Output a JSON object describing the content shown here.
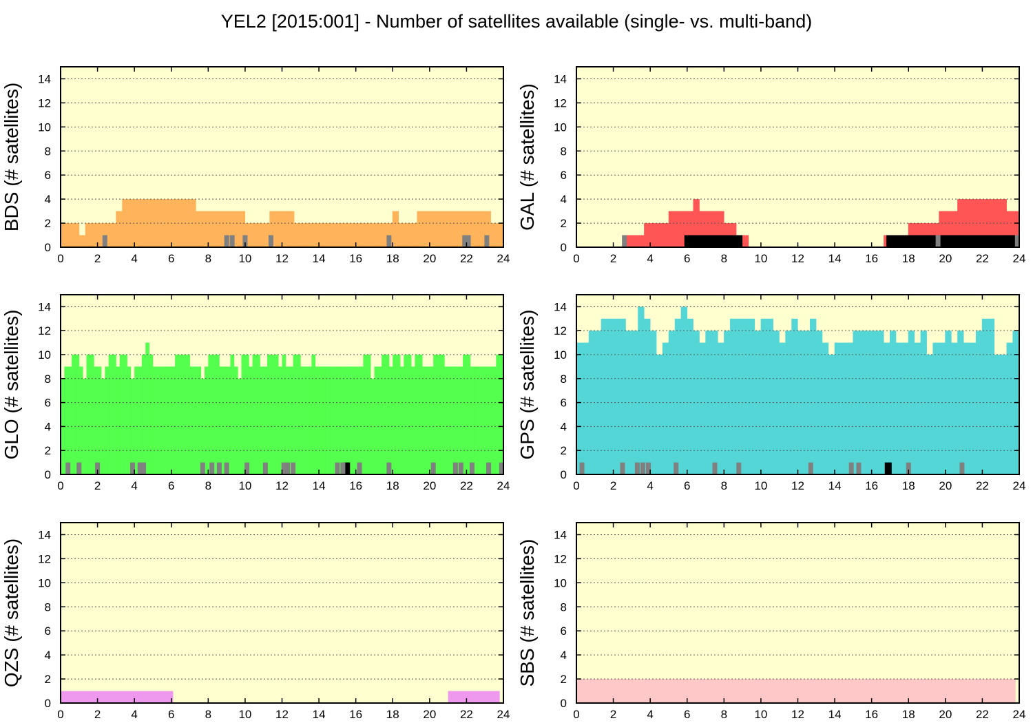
{
  "title": "YEL2 [2015:001] - Number of satellites available (single- vs. multi-band)",
  "colors": {
    "plot_bg": "#ffffd0",
    "multi_band": "#000000",
    "single_band_marks": "#808080",
    "grid": "#555555"
  },
  "chart_data": [
    {
      "type": "bar",
      "system": "BDS",
      "ylabel": "BDS (# satellites)",
      "color": "#ffb35a",
      "xlim": [
        0,
        24
      ],
      "ylim": [
        0,
        15
      ],
      "xticks": [
        0,
        2,
        4,
        6,
        8,
        10,
        12,
        14,
        16,
        18,
        20,
        22,
        24
      ],
      "yticks": [
        0,
        2,
        4,
        6,
        8,
        10,
        12,
        14
      ],
      "grid": true,
      "bin_hours": 0.333,
      "values": [
        2,
        2,
        2,
        1,
        2,
        2,
        2,
        2,
        2,
        3,
        4,
        4,
        4,
        4,
        4,
        4,
        4,
        4,
        4,
        4,
        4,
        4,
        3,
        3,
        3,
        3,
        3,
        3,
        3,
        3,
        2,
        2,
        2,
        2,
        3,
        3,
        3,
        3,
        2,
        2,
        2,
        2,
        2,
        2,
        2,
        2,
        2,
        2,
        2,
        2,
        2,
        2,
        2,
        2,
        3,
        2,
        2,
        2,
        3,
        3,
        3,
        3,
        3,
        3,
        3,
        3,
        3,
        3,
        3,
        3,
        2,
        2
      ],
      "single_band": [],
      "grey_marks_x": [
        2.4,
        9.0,
        9.3,
        10.0,
        11.4,
        17.8,
        21.9,
        22.1,
        23.1
      ]
    },
    {
      "type": "bar",
      "system": "GAL",
      "ylabel": "GAL (# satellites)",
      "color": "#ff5555",
      "xlim": [
        0,
        24
      ],
      "ylim": [
        0,
        15
      ],
      "xticks": [
        0,
        2,
        4,
        6,
        8,
        10,
        12,
        14,
        16,
        18,
        20,
        22,
        24
      ],
      "yticks": [
        0,
        2,
        4,
        6,
        8,
        10,
        12,
        14
      ],
      "grid": true,
      "bin_hours": 0.333,
      "values": [
        0,
        0,
        0,
        0,
        0,
        0,
        0,
        0,
        1,
        1,
        1,
        2,
        2,
        2,
        2,
        3,
        3,
        3,
        3,
        4,
        3,
        3,
        3,
        3,
        2,
        2,
        1,
        1,
        0,
        0,
        0,
        0,
        0,
        0,
        0,
        0,
        0,
        0,
        0,
        0,
        0,
        0,
        0,
        0,
        0,
        0,
        0,
        0,
        0,
        0,
        1,
        1,
        1,
        1,
        2,
        2,
        2,
        2,
        2,
        3,
        3,
        3,
        4,
        4,
        4,
        4,
        4,
        4,
        4,
        4,
        3,
        3
      ],
      "single_band": [
        0,
        0,
        0,
        0,
        0,
        0,
        0,
        0,
        0,
        0,
        0,
        0,
        0,
        0,
        0,
        0,
        0,
        0,
        0,
        0,
        0,
        0,
        0,
        0,
        0,
        0,
        0,
        0,
        0,
        0,
        0,
        0,
        0,
        0,
        0,
        0,
        0,
        0,
        0,
        0,
        0,
        0,
        0,
        0,
        0,
        0,
        0,
        0,
        0,
        0,
        0,
        0,
        0,
        0,
        0,
        0,
        0,
        0,
        0,
        0,
        0,
        0,
        0,
        0,
        0,
        0,
        0,
        0,
        0,
        0,
        0,
        0
      ],
      "multi_band_blocks": [
        [
          5.85,
          9.0
        ],
        [
          16.8,
          23.8
        ]
      ],
      "grey_marks_x": [
        2.6,
        19.6,
        23.9
      ]
    },
    {
      "type": "bar",
      "system": "GLO",
      "ylabel": "GLO (# satellites)",
      "color": "#55ff4d",
      "xlim": [
        0,
        24
      ],
      "ylim": [
        0,
        15
      ],
      "xticks": [
        0,
        2,
        4,
        6,
        8,
        10,
        12,
        14,
        16,
        18,
        20,
        22,
        24
      ],
      "yticks": [
        0,
        2,
        4,
        6,
        8,
        10,
        12,
        14
      ],
      "grid": true,
      "bin_hours": 0.2,
      "values": [
        8,
        9,
        9,
        10,
        10,
        9,
        8,
        10,
        10,
        9,
        9,
        8,
        9,
        10,
        10,
        9,
        10,
        10,
        9,
        8,
        9,
        9,
        10,
        11,
        10,
        9,
        9,
        9,
        9,
        9,
        9,
        10,
        10,
        10,
        10,
        9,
        9,
        9,
        8,
        9,
        10,
        10,
        10,
        9,
        9,
        9,
        10,
        9,
        8,
        10,
        10,
        9,
        10,
        10,
        9,
        9,
        10,
        10,
        10,
        9,
        10,
        9,
        9,
        10,
        10,
        9,
        9,
        9,
        10,
        9,
        9,
        9,
        9,
        9,
        9,
        9,
        9,
        9,
        9,
        9,
        9,
        9,
        10,
        10,
        8,
        9,
        9,
        10,
        10,
        9,
        10,
        10,
        9,
        10,
        10,
        9,
        10,
        10,
        9,
        9,
        9,
        10,
        10,
        10,
        9,
        9,
        9,
        9,
        9,
        10,
        10,
        9,
        9,
        9,
        9,
        9,
        9,
        9,
        10,
        10
      ],
      "multi_band_marks_x": [
        15.5
      ],
      "grey_marks_x": [
        0.4,
        1.0,
        2.0,
        3.9,
        4.3,
        4.5,
        7.7,
        8.2,
        8.6,
        9.0,
        10.1,
        11.1,
        12.1,
        12.3,
        12.6,
        15.0,
        15.3,
        16.2,
        17.8,
        20.2,
        21.4,
        21.7,
        22.3,
        23.2,
        23.9
      ]
    },
    {
      "type": "bar",
      "system": "GPS",
      "ylabel": "GPS (# satellites)",
      "color": "#55d6d6",
      "xlim": [
        0,
        24
      ],
      "ylim": [
        0,
        15
      ],
      "xticks": [
        0,
        2,
        4,
        6,
        8,
        10,
        12,
        14,
        16,
        18,
        20,
        22,
        24
      ],
      "yticks": [
        0,
        2,
        4,
        6,
        8,
        10,
        12,
        14
      ],
      "grid": true,
      "bin_hours": 0.333,
      "values": [
        11,
        11,
        12,
        12,
        13,
        13,
        13,
        13,
        12,
        12,
        14,
        13,
        12,
        10,
        11,
        12,
        13,
        14,
        13,
        12,
        11,
        12,
        12,
        11,
        12,
        13,
        13,
        13,
        13,
        12,
        13,
        13,
        12,
        11,
        12,
        13,
        12,
        12,
        13,
        12,
        11,
        10,
        11,
        11,
        11,
        12,
        12,
        12,
        12,
        12,
        11,
        12,
        11,
        11,
        12,
        11,
        12,
        10,
        11,
        11,
        12,
        11,
        12,
        11,
        11,
        12,
        13,
        13,
        10,
        10,
        11,
        12
      ],
      "multi_band_marks_x": [
        16.9
      ],
      "grey_marks_x": [
        0.3,
        2.5,
        3.3,
        3.6,
        3.9,
        5.4,
        7.5,
        8.8,
        12.7,
        14.9,
        15.3,
        18.0,
        20.9
      ]
    },
    {
      "type": "bar",
      "system": "QZS",
      "ylabel": "QZS (# satellites)",
      "color": "#ee99ee",
      "xlim": [
        0,
        24
      ],
      "ylim": [
        0,
        15
      ],
      "xticks": [
        0,
        2,
        4,
        6,
        8,
        10,
        12,
        14,
        16,
        18,
        20,
        22,
        24
      ],
      "yticks": [
        0,
        2,
        4,
        6,
        8,
        10,
        12,
        14
      ],
      "grid": true,
      "segments": [
        {
          "x0": 0.0,
          "x1": 6.1,
          "value": 1
        },
        {
          "x0": 21.0,
          "x1": 23.8,
          "value": 1
        }
      ]
    },
    {
      "type": "bar",
      "system": "SBS",
      "ylabel": "SBS (# satellites)",
      "color": "#ffc8c8",
      "xlim": [
        0,
        24
      ],
      "ylim": [
        0,
        15
      ],
      "xticks": [
        0,
        2,
        4,
        6,
        8,
        10,
        12,
        14,
        16,
        18,
        20,
        22,
        24
      ],
      "yticks": [
        0,
        2,
        4,
        6,
        8,
        10,
        12,
        14
      ],
      "grid": true,
      "segments": [
        {
          "x0": 0.0,
          "x1": 23.8,
          "value": 2
        }
      ]
    }
  ]
}
